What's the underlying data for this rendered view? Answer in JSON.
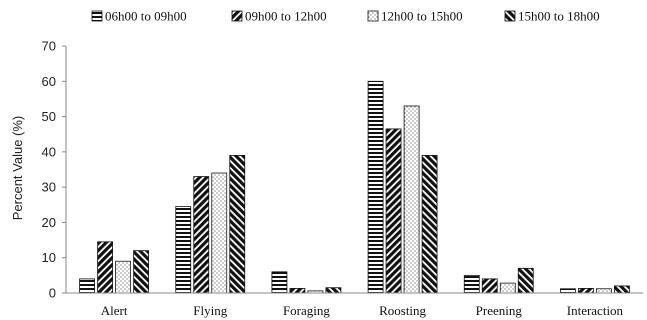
{
  "chart_data": {
    "type": "bar",
    "ylabel": "Percent Value (%)",
    "xlabel": "",
    "ylim": [
      0,
      70
    ],
    "yticks": [
      0,
      10,
      20,
      30,
      40,
      50,
      60,
      70
    ],
    "grid": false,
    "legend_position": "top",
    "categories": [
      "Alert",
      "Flying",
      "Foraging",
      "Roosting",
      "Preening",
      "Interaction"
    ],
    "series": [
      {
        "name": "06h00 to 09h00",
        "pattern": "horizontal-stripes",
        "values": [
          4,
          24.5,
          6,
          60,
          5,
          1.2
        ]
      },
      {
        "name": "09h00 to 12h00",
        "pattern": "diagonal-stripes-up",
        "values": [
          14.5,
          33,
          1.3,
          46.5,
          4,
          1.3
        ]
      },
      {
        "name": "12h00 to 15h00",
        "pattern": "dots",
        "values": [
          9,
          34,
          0.6,
          53,
          2.8,
          1.2
        ]
      },
      {
        "name": "15h00 to 18h00",
        "pattern": "diagonal-stripes-down",
        "values": [
          12,
          39,
          1.5,
          39,
          7,
          2
        ]
      }
    ]
  }
}
